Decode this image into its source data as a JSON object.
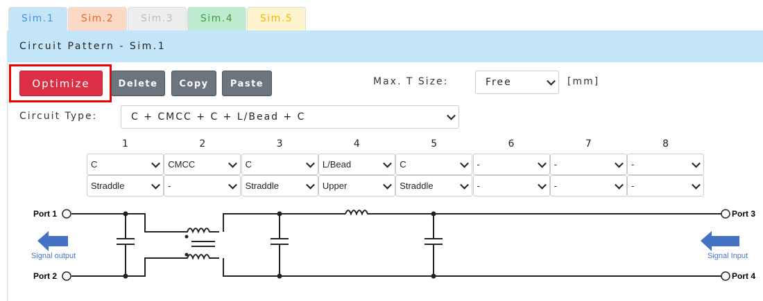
{
  "tabs": [
    {
      "label": "Sim.1",
      "bg": "#c3e5f7",
      "color": "#4a90e2"
    },
    {
      "label": "Sim.2",
      "bg": "#f9d9c4",
      "color": "#e8672c"
    },
    {
      "label": "Sim.3",
      "bg": "#eeeeee",
      "color": "#bbbbbb"
    },
    {
      "label": "Sim.4",
      "bg": "#bdebcf",
      "color": "#3e9a3e"
    },
    {
      "label": "Sim.5",
      "bg": "#fdf3cf",
      "color": "#f5b400"
    }
  ],
  "header": {
    "title": "Circuit Pattern - Sim.1"
  },
  "toolbar": {
    "optimize": "Optimize",
    "delete": "Delete",
    "copy": "Copy",
    "paste": "Paste",
    "max_t_label": "Max. T Size:",
    "max_t_value": "Free",
    "unit": "[mm]"
  },
  "circuit_type": {
    "label": "Circuit Type:",
    "value": "C + CMCC + C + L/Bead + C"
  },
  "columns": [
    {
      "num": "1",
      "type": "C",
      "mount": "Straddle"
    },
    {
      "num": "2",
      "type": "CMCC",
      "mount": "-"
    },
    {
      "num": "3",
      "type": "C",
      "mount": "Straddle"
    },
    {
      "num": "4",
      "type": "L/Bead",
      "mount": "Upper"
    },
    {
      "num": "5",
      "type": "C",
      "mount": "Straddle"
    },
    {
      "num": "6",
      "type": "-",
      "mount": "-"
    },
    {
      "num": "7",
      "type": "-",
      "mount": "-"
    },
    {
      "num": "8",
      "type": "-",
      "mount": "-"
    }
  ],
  "schematic": {
    "port1": "Port 1",
    "port2": "Port 2",
    "port3": "Port 3",
    "port4": "Port 4",
    "signal_output": "Signal output",
    "signal_input": "Signal Input",
    "arrow_color": "#4472c4"
  }
}
